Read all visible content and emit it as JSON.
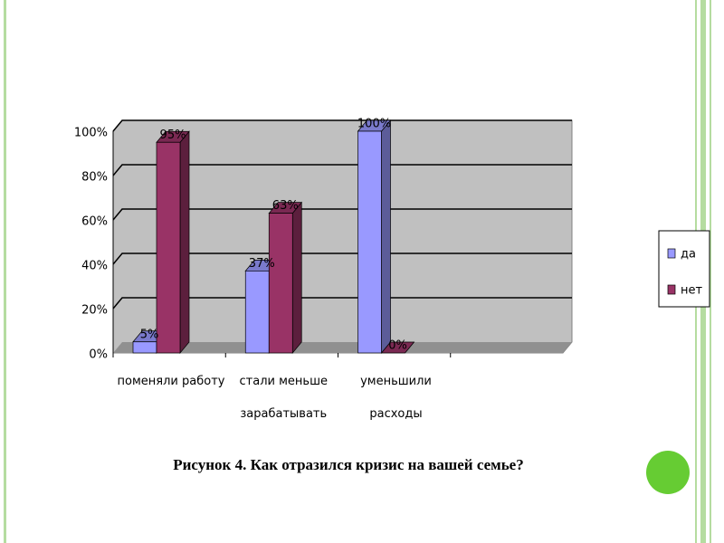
{
  "chart_data": {
    "type": "bar",
    "caption": "Рисунок 4. Как отразился кризис на вашей семье?",
    "categories": [
      "поменяли работу",
      "стали меньше зарабатывать",
      "уменьшили расходы",
      null
    ],
    "series": [
      {
        "name": "да",
        "color": "#9999ff",
        "values": [
          5,
          37,
          100,
          null
        ],
        "value_labels": [
          "5%",
          "37%",
          "100%",
          null
        ]
      },
      {
        "name": "нет",
        "color": "#993366",
        "values": [
          95,
          63,
          0,
          null
        ],
        "value_labels": [
          "95%",
          "63%",
          "0%",
          null
        ]
      }
    ],
    "ylim": [
      0,
      100
    ],
    "yticks": [
      {
        "value": 0,
        "label": "0%"
      },
      {
        "value": 20,
        "label": "20%"
      },
      {
        "value": 40,
        "label": "40%"
      },
      {
        "value": 60,
        "label": "60%"
      },
      {
        "value": 80,
        "label": "80%"
      },
      {
        "value": 100,
        "label": "100%"
      }
    ],
    "grid": true,
    "legend": "right"
  }
}
